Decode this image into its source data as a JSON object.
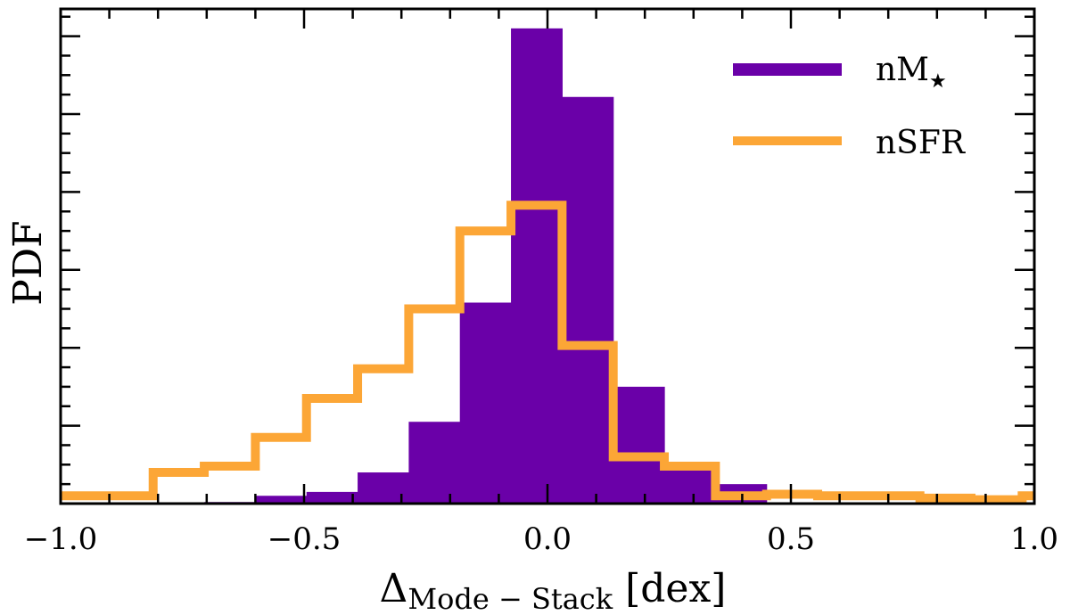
{
  "chart_data": {
    "type": "histogram",
    "xlabel_main": "Δ",
    "xlabel_sub": "Mode − Stack",
    "xlabel_unit": " [dex]",
    "ylabel": "PDF",
    "xlim": [
      -1.0,
      1.0
    ],
    "ylim": [
      0,
      6.35
    ],
    "bin_width": 0.105,
    "xticks": [
      -1.0,
      -0.5,
      0.0,
      0.5,
      1.0
    ],
    "xtick_labels": [
      "−1.0",
      "−0.5",
      "0.0",
      "0.5",
      "1.0"
    ],
    "xticks_minor": [
      -0.9,
      -0.8,
      -0.7,
      -0.6,
      -0.4,
      -0.3,
      -0.2,
      -0.1,
      0.1,
      0.2,
      0.3,
      0.4,
      0.6,
      0.7,
      0.8,
      0.9
    ],
    "yticks_major": [
      1,
      2,
      3,
      4,
      5,
      6
    ],
    "yticks_minor": [
      0.25,
      0.5,
      0.75,
      1.25,
      1.5,
      1.75,
      2.25,
      2.5,
      2.75,
      3.25,
      3.5,
      3.75,
      4.25,
      4.5,
      4.75,
      5.25,
      5.5,
      5.75,
      6.25
    ],
    "series": [
      {
        "name": "nM",
        "name_sub": "★",
        "style": "filled",
        "color": "#6a00a8",
        "bin_edges": [
          -0.705,
          -0.6,
          -0.495,
          -0.39,
          -0.285,
          -0.18,
          -0.075,
          0.03,
          0.135,
          0.24,
          0.345,
          0.45
        ],
        "values": [
          0.02,
          0.1,
          0.15,
          0.4,
          1.05,
          2.58,
          6.1,
          5.22,
          1.5,
          0.45,
          0.25
        ]
      },
      {
        "name": "nSFR",
        "name_sub": "",
        "style": "step",
        "color": "#fca636",
        "bin_edges": [
          -1.0,
          -0.81,
          -0.705,
          -0.6,
          -0.495,
          -0.39,
          -0.285,
          -0.18,
          -0.075,
          0.03,
          0.135,
          0.24,
          0.345,
          0.45,
          0.555,
          0.66,
          0.765,
          0.87,
          0.975,
          1.0
        ],
        "values": [
          0.1,
          0.4,
          0.48,
          0.85,
          1.35,
          1.73,
          2.5,
          3.5,
          3.83,
          2.03,
          0.6,
          0.48,
          0.1,
          0.12,
          0.1,
          0.1,
          0.07,
          0.05,
          0.1
        ]
      }
    ]
  }
}
